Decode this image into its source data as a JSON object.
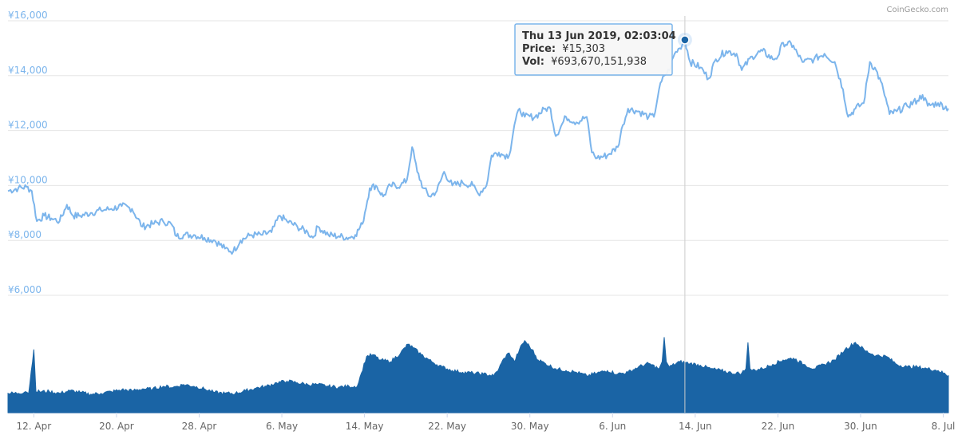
{
  "credit": "CoinGecko.com",
  "tooltip": {
    "date": "Thu 13 Jun 2019, 02:03:04",
    "price_label": "Price:",
    "price_value": "¥15,303",
    "vol_label": "Vol:",
    "vol_value": "¥693,670,151,938"
  },
  "colors": {
    "price_line": "#7cb5ec",
    "volume": "#1a64a5",
    "axis_label": "#7cb5ec",
    "grid": "#e6e6e6"
  },
  "chart_data": {
    "type": "line",
    "y_ticks": [
      "¥16,000",
      "¥14,000",
      "¥12,000",
      "¥10,000",
      "¥8,000",
      "¥6,000"
    ],
    "y_tick_values": [
      16000,
      14000,
      12000,
      10000,
      8000,
      6000
    ],
    "ylim": [
      6000,
      16000
    ],
    "x_ticks": [
      "12. Apr",
      "20. Apr",
      "28. Apr",
      "6. May",
      "14. May",
      "22. May",
      "30. May",
      "6. Jun",
      "14. Jun",
      "22. Jun",
      "30. Jun",
      "8. Jul"
    ],
    "x_tick_days": [
      2.5,
      10.5,
      18.5,
      26.5,
      34.5,
      42.5,
      50.5,
      58.5,
      66.5,
      74.5,
      82.5,
      90.5
    ],
    "x_range_days": [
      0,
      91
    ],
    "series": [
      {
        "values": [
          [
            0,
            9800
          ],
          [
            1,
            9900
          ],
          [
            1.8,
            9950
          ],
          [
            2.3,
            9800
          ],
          [
            2.8,
            8700
          ],
          [
            3.5,
            8900
          ],
          [
            4.2,
            8800
          ],
          [
            5,
            8700
          ],
          [
            5.7,
            9300
          ],
          [
            6.3,
            8900
          ],
          [
            7,
            8900
          ],
          [
            8,
            9000
          ],
          [
            9,
            9100
          ],
          [
            10,
            9150
          ],
          [
            11,
            9250
          ],
          [
            12,
            9150
          ],
          [
            13,
            8500
          ],
          [
            14,
            8600
          ],
          [
            15,
            8700
          ],
          [
            15.8,
            8600
          ],
          [
            16.3,
            8150
          ],
          [
            17,
            8200
          ],
          [
            18,
            8200
          ],
          [
            19,
            8100
          ],
          [
            20,
            8000
          ],
          [
            21,
            7700
          ],
          [
            21.8,
            7600
          ],
          [
            22.5,
            8000
          ],
          [
            23.5,
            8200
          ],
          [
            24.5,
            8200
          ],
          [
            25.5,
            8300
          ],
          [
            26.3,
            8900
          ],
          [
            27,
            8700
          ],
          [
            28,
            8500
          ],
          [
            29,
            8300
          ],
          [
            29.5,
            8100
          ],
          [
            30,
            8500
          ],
          [
            31,
            8200
          ],
          [
            32,
            8150
          ],
          [
            33,
            8100
          ],
          [
            33.6,
            8200
          ],
          [
            34.3,
            8600
          ],
          [
            35,
            9900
          ],
          [
            35.6,
            10000
          ],
          [
            36.3,
            9600
          ],
          [
            37,
            10000
          ],
          [
            38,
            10000
          ],
          [
            38.6,
            10200
          ],
          [
            39.1,
            11400
          ],
          [
            39.6,
            10500
          ],
          [
            40.2,
            9900
          ],
          [
            40.8,
            9600
          ],
          [
            41.5,
            9800
          ],
          [
            42.2,
            10500
          ],
          [
            43,
            10000
          ],
          [
            44,
            10100
          ],
          [
            45,
            10000
          ],
          [
            45.5,
            9700
          ],
          [
            46.3,
            10000
          ],
          [
            46.8,
            11100
          ],
          [
            47.5,
            11200
          ],
          [
            48,
            11100
          ],
          [
            48.5,
            11100
          ],
          [
            49,
            12200
          ],
          [
            49.5,
            12800
          ],
          [
            50,
            12500
          ],
          [
            51,
            12500
          ],
          [
            52,
            12800
          ],
          [
            52.5,
            12800
          ],
          [
            53,
            11800
          ],
          [
            54,
            12500
          ],
          [
            55,
            12300
          ],
          [
            56,
            12500
          ],
          [
            56.5,
            11200
          ],
          [
            57,
            11000
          ],
          [
            58,
            11100
          ],
          [
            59,
            11400
          ],
          [
            59.5,
            12200
          ],
          [
            60,
            12800
          ],
          [
            61,
            12700
          ],
          [
            62,
            12500
          ],
          [
            62.5,
            12500
          ],
          [
            63,
            13500
          ],
          [
            63.5,
            14000
          ],
          [
            64,
            14200
          ],
          [
            64.5,
            14800
          ],
          [
            65,
            15000
          ],
          [
            65.5,
            15303
          ],
          [
            66,
            14500
          ],
          [
            67,
            14300
          ],
          [
            67.8,
            13900
          ],
          [
            68.5,
            14600
          ],
          [
            69.5,
            14900
          ],
          [
            70.5,
            14800
          ],
          [
            71,
            14200
          ],
          [
            72,
            14700
          ],
          [
            73,
            14900
          ],
          [
            74,
            14600
          ],
          [
            74.5,
            14700
          ],
          [
            75,
            15200
          ],
          [
            76,
            15100
          ],
          [
            76.5,
            14700
          ],
          [
            77,
            14500
          ],
          [
            78,
            14600
          ],
          [
            79,
            14800
          ],
          [
            80,
            14500
          ],
          [
            80.8,
            13500
          ],
          [
            81.3,
            12500
          ],
          [
            82,
            12800
          ],
          [
            82.8,
            13000
          ],
          [
            83.4,
            14500
          ],
          [
            84,
            14200
          ],
          [
            84.7,
            13500
          ],
          [
            85.3,
            12600
          ],
          [
            86,
            12700
          ],
          [
            87,
            12900
          ],
          [
            88,
            13100
          ],
          [
            88.5,
            13300
          ],
          [
            89,
            12900
          ],
          [
            90,
            13000
          ],
          [
            91,
            12800
          ]
        ]
      },
      {
        "name": "Volume",
        "values": [
          [
            0,
            0.22
          ],
          [
            1,
            0.22
          ],
          [
            1.7,
            0.24
          ],
          [
            2,
            0.22
          ],
          [
            2.5,
            0.72
          ],
          [
            2.7,
            0.24
          ],
          [
            4,
            0.24
          ],
          [
            5,
            0.22
          ],
          [
            6,
            0.25
          ],
          [
            7,
            0.23
          ],
          [
            8,
            0.21
          ],
          [
            9,
            0.22
          ],
          [
            10,
            0.24
          ],
          [
            11,
            0.26
          ],
          [
            12,
            0.25
          ],
          [
            13,
            0.27
          ],
          [
            14,
            0.27
          ],
          [
            15,
            0.3
          ],
          [
            16,
            0.29
          ],
          [
            17,
            0.32
          ],
          [
            18,
            0.3
          ],
          [
            19,
            0.27
          ],
          [
            20,
            0.23
          ],
          [
            21,
            0.22
          ],
          [
            22,
            0.22
          ],
          [
            23,
            0.25
          ],
          [
            24,
            0.28
          ],
          [
            25,
            0.3
          ],
          [
            26,
            0.34
          ],
          [
            27,
            0.36
          ],
          [
            28,
            0.34
          ],
          [
            29,
            0.32
          ],
          [
            30,
            0.32
          ],
          [
            31,
            0.3
          ],
          [
            32,
            0.29
          ],
          [
            33,
            0.3
          ],
          [
            33.8,
            0.3
          ],
          [
            34.2,
            0.45
          ],
          [
            34.7,
            0.64
          ],
          [
            35.3,
            0.66
          ],
          [
            36,
            0.6
          ],
          [
            37,
            0.58
          ],
          [
            38,
            0.68
          ],
          [
            38.7,
            0.78
          ],
          [
            39.2,
            0.74
          ],
          [
            40,
            0.66
          ],
          [
            41,
            0.58
          ],
          [
            42,
            0.52
          ],
          [
            43,
            0.48
          ],
          [
            44,
            0.46
          ],
          [
            45,
            0.45
          ],
          [
            46,
            0.44
          ],
          [
            47,
            0.42
          ],
          [
            47.5,
            0.5
          ],
          [
            48,
            0.62
          ],
          [
            48.5,
            0.68
          ],
          [
            49,
            0.58
          ],
          [
            49.5,
            0.72
          ],
          [
            50,
            0.82
          ],
          [
            50.7,
            0.72
          ],
          [
            51.3,
            0.6
          ],
          [
            52,
            0.56
          ],
          [
            53,
            0.5
          ],
          [
            54,
            0.48
          ],
          [
            55,
            0.46
          ],
          [
            56,
            0.42
          ],
          [
            57,
            0.45
          ],
          [
            58,
            0.48
          ],
          [
            59,
            0.44
          ],
          [
            60,
            0.46
          ],
          [
            61,
            0.52
          ],
          [
            62,
            0.56
          ],
          [
            63,
            0.5
          ],
          [
            63.3,
            0.58
          ],
          [
            63.5,
            0.86
          ],
          [
            63.7,
            0.58
          ],
          [
            64,
            0.52
          ],
          [
            65,
            0.58
          ],
          [
            66,
            0.56
          ],
          [
            67,
            0.54
          ],
          [
            68,
            0.5
          ],
          [
            69,
            0.48
          ],
          [
            70,
            0.45
          ],
          [
            71,
            0.45
          ],
          [
            71.4,
            0.5
          ],
          [
            71.6,
            0.8
          ],
          [
            71.8,
            0.5
          ],
          [
            72,
            0.48
          ],
          [
            73,
            0.5
          ],
          [
            74,
            0.55
          ],
          [
            75,
            0.6
          ],
          [
            76,
            0.62
          ],
          [
            77,
            0.55
          ],
          [
            78,
            0.5
          ],
          [
            79,
            0.55
          ],
          [
            80,
            0.6
          ],
          [
            81,
            0.72
          ],
          [
            82,
            0.8
          ],
          [
            83,
            0.7
          ],
          [
            84,
            0.65
          ],
          [
            85,
            0.64
          ],
          [
            86,
            0.55
          ],
          [
            87,
            0.52
          ],
          [
            88,
            0.52
          ],
          [
            89,
            0.5
          ],
          [
            90,
            0.48
          ],
          [
            91,
            0.42
          ]
        ]
      }
    ],
    "highlight": {
      "day": 65.5,
      "price": 15303
    }
  }
}
